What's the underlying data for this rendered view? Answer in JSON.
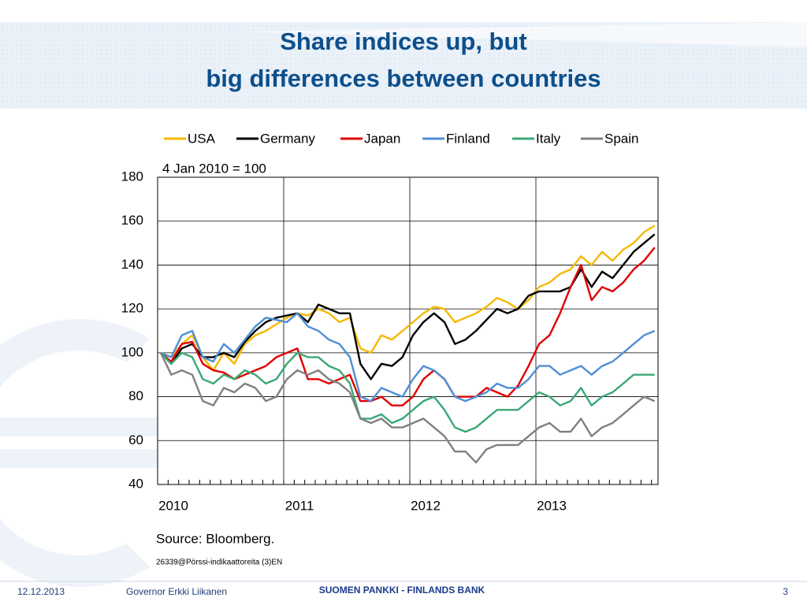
{
  "slide": {
    "title": [
      "Share indices up, but",
      "big differences between countries"
    ],
    "source": "Source: Bloomberg.",
    "code": "26339@Pörssi-indikaattoreita (3)EN",
    "footer": {
      "date": "12.12.2013",
      "speaker": "Governor Erkki Liikanen",
      "bank": "SUOMEN PANKKI - FINLANDS BANK",
      "page": "3"
    }
  },
  "chart_data": {
    "type": "line",
    "annotation": "4 Jan 2010 = 100",
    "categories": [
      "2010",
      null,
      null,
      null,
      null,
      null,
      null,
      null,
      null,
      null,
      null,
      null,
      "2011",
      null,
      null,
      null,
      null,
      null,
      null,
      null,
      null,
      null,
      null,
      null,
      "2012",
      null,
      null,
      null,
      null,
      null,
      null,
      null,
      null,
      null,
      null,
      null,
      "2013",
      null,
      null,
      null,
      null,
      null,
      null,
      null,
      null,
      null,
      null,
      null
    ],
    "ylim": [
      40,
      180
    ],
    "yticks": [
      40,
      60,
      80,
      100,
      120,
      140,
      160,
      180
    ],
    "grid": true,
    "legend": "top",
    "series": [
      {
        "name": "USA",
        "color": "#f5b800",
        "values": [
          100,
          98,
          104,
          108,
          98,
          92,
          100,
          95,
          104,
          108,
          110,
          113,
          116,
          118,
          117,
          120,
          118,
          114,
          116,
          102,
          100,
          108,
          106,
          110,
          114,
          118,
          121,
          120,
          114,
          116,
          118,
          121,
          125,
          123,
          120,
          124,
          130,
          132,
          136,
          138,
          144,
          140,
          146,
          142,
          147,
          150,
          155,
          158
        ]
      },
      {
        "name": "Germany",
        "color": "#000000",
        "values": [
          100,
          95,
          102,
          104,
          98,
          98,
          100,
          98,
          105,
          110,
          114,
          116,
          117,
          118,
          114,
          122,
          120,
          118,
          118,
          95,
          88,
          95,
          94,
          98,
          108,
          114,
          118,
          114,
          104,
          106,
          110,
          115,
          120,
          118,
          120,
          126,
          128,
          128,
          128,
          130,
          138,
          130,
          137,
          134,
          140,
          146,
          150,
          154
        ]
      },
      {
        "name": "Japan",
        "color": "#e00000",
        "values": [
          100,
          96,
          104,
          105,
          95,
          92,
          91,
          88,
          90,
          92,
          94,
          98,
          100,
          102,
          88,
          88,
          86,
          88,
          90,
          78,
          78,
          80,
          76,
          76,
          80,
          88,
          92,
          88,
          80,
          80,
          80,
          84,
          82,
          80,
          85,
          94,
          104,
          108,
          118,
          130,
          140,
          124,
          130,
          128,
          132,
          138,
          142,
          148
        ]
      },
      {
        "name": "Finland",
        "color": "#4f8fd6",
        "values": [
          100,
          98,
          108,
          110,
          98,
          96,
          104,
          100,
          106,
          112,
          116,
          115,
          114,
          118,
          112,
          110,
          106,
          104,
          98,
          80,
          78,
          84,
          82,
          80,
          88,
          94,
          92,
          88,
          80,
          78,
          80,
          82,
          86,
          84,
          84,
          88,
          94,
          94,
          90,
          92,
          94,
          90,
          94,
          96,
          100,
          104,
          108,
          110
        ]
      },
      {
        "name": "Italy",
        "color": "#3aa876",
        "values": [
          100,
          95,
          100,
          98,
          88,
          86,
          90,
          88,
          92,
          90,
          86,
          88,
          95,
          100,
          98,
          98,
          94,
          92,
          86,
          70,
          70,
          72,
          68,
          70,
          74,
          78,
          80,
          74,
          66,
          64,
          66,
          70,
          74,
          74,
          74,
          78,
          82,
          80,
          76,
          78,
          84,
          76,
          80,
          82,
          86,
          90,
          90,
          90
        ]
      },
      {
        "name": "Spain",
        "color": "#808080",
        "values": [
          100,
          90,
          92,
          90,
          78,
          76,
          84,
          82,
          86,
          84,
          78,
          80,
          88,
          92,
          90,
          92,
          88,
          86,
          82,
          70,
          68,
          70,
          66,
          66,
          68,
          70,
          66,
          62,
          55,
          55,
          50,
          56,
          58,
          58,
          58,
          62,
          66,
          68,
          64,
          64,
          70,
          62,
          66,
          68,
          72,
          76,
          80,
          78
        ]
      }
    ]
  }
}
